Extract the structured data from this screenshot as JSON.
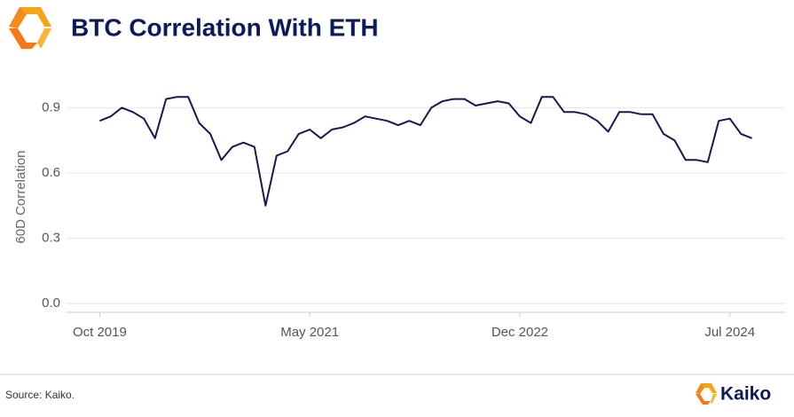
{
  "chart_data": {
    "type": "line",
    "title": "BTC Correlation With ETH",
    "y_label": "60D Correlation",
    "source": "Source: Kaiko.",
    "brand": "Kaiko",
    "color": "#141a4e",
    "grid": true,
    "x": [
      "2019-10",
      "2019-11",
      "2019-12",
      "2020-01",
      "2020-02",
      "2020-03",
      "2020-04",
      "2020-05",
      "2020-06",
      "2020-07",
      "2020-08",
      "2020-09",
      "2020-10",
      "2020-11",
      "2020-12",
      "2021-01",
      "2021-02",
      "2021-03",
      "2021-04",
      "2021-05",
      "2021-06",
      "2021-07",
      "2021-08",
      "2021-09",
      "2021-10",
      "2021-11",
      "2021-12",
      "2022-01",
      "2022-02",
      "2022-03",
      "2022-04",
      "2022-05",
      "2022-06",
      "2022-07",
      "2022-08",
      "2022-09",
      "2022-10",
      "2022-11",
      "2022-12",
      "2023-01",
      "2023-02",
      "2023-03",
      "2023-04",
      "2023-05",
      "2023-06",
      "2023-07",
      "2023-08",
      "2023-09",
      "2023-10",
      "2023-11",
      "2023-12",
      "2024-01",
      "2024-02",
      "2024-03",
      "2024-04",
      "2024-05",
      "2024-06",
      "2024-07",
      "2024-08",
      "2024-09"
    ],
    "values": [
      0.84,
      0.86,
      0.9,
      0.88,
      0.85,
      0.76,
      0.94,
      0.95,
      0.95,
      0.83,
      0.78,
      0.66,
      0.72,
      0.74,
      0.72,
      0.45,
      0.68,
      0.7,
      0.78,
      0.8,
      0.76,
      0.8,
      0.81,
      0.83,
      0.86,
      0.85,
      0.84,
      0.82,
      0.84,
      0.82,
      0.9,
      0.93,
      0.94,
      0.94,
      0.91,
      0.92,
      0.93,
      0.92,
      0.86,
      0.83,
      0.95,
      0.95,
      0.88,
      0.88,
      0.87,
      0.84,
      0.79,
      0.88,
      0.88,
      0.87,
      0.87,
      0.78,
      0.75,
      0.66,
      0.66,
      0.65,
      0.84,
      0.85,
      0.78,
      0.76
    ],
    "xlim": [
      "2019-07",
      "2024-12"
    ],
    "xticks": [
      {
        "value": "2019-10",
        "label": "Oct 2019"
      },
      {
        "value": "2021-05",
        "label": "May 2021"
      },
      {
        "value": "2022-12",
        "label": "Dec 2022"
      },
      {
        "value": "2024-07",
        "label": "Jul 2024"
      }
    ],
    "ylim": [
      -0.04,
      1.02
    ],
    "yticks": [
      {
        "value": 0,
        "label": "0.0"
      },
      0.3,
      0.6,
      0.9
    ]
  }
}
